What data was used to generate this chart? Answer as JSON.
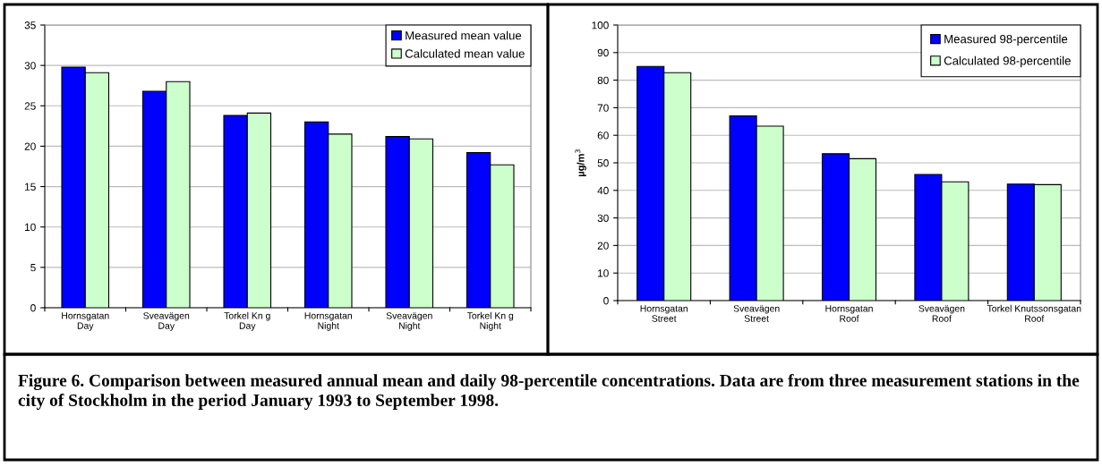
{
  "chart_data": [
    {
      "type": "bar",
      "categories": [
        "Hornsgatan\nDay",
        "Sveavägen\nDay",
        "Torkel Kn g\nDay",
        "Hornsgatan\nNight",
        "Sveavägen\nNight",
        "Torkel Kn g\nNight"
      ],
      "series": [
        {
          "name": "Measured mean value",
          "color": "#0000ff",
          "values": [
            29.8,
            26.8,
            23.8,
            23.0,
            21.2,
            19.2
          ]
        },
        {
          "name": "Calculated mean value",
          "color": "#ccffcc",
          "values": [
            29.1,
            28.0,
            24.1,
            21.5,
            20.9,
            17.7
          ]
        }
      ],
      "ylim": [
        0,
        35
      ],
      "yticks": [
        0,
        5,
        10,
        15,
        20,
        25,
        30,
        35
      ],
      "grid": "y",
      "legend": "top right",
      "annotations": [
        "Figure 6. Comparison between measured annual mean and daily 98-percentile concentrations. Data are from three measurement stations in the city of Stockholm in the period January 1993 to September 1998."
      ]
    },
    {
      "type": "bar",
      "categories": [
        "Hornsgatan\nStreet",
        "Sveavägen\nStreet",
        "Hornsgatan\nRoof",
        "Sveavägen\nRoof",
        "Torkel Knutssonsgatan\nRoof"
      ],
      "ylabel": "µg/m$^{3}$",
      "series": [
        {
          "name": "Measured 98-percentile",
          "color": "#0000ff",
          "values": [
            85,
            67,
            53.3,
            45.8,
            42.3
          ]
        },
        {
          "name": "Calculated 98-percentile",
          "color": "#ccffcc",
          "values": [
            82.7,
            63.3,
            51.5,
            43.1,
            42.1
          ]
        }
      ],
      "ylim": [
        0,
        100
      ],
      "yticks": [
        0,
        10,
        20,
        30,
        40,
        50,
        60,
        70,
        80,
        90,
        100
      ],
      "grid": "y",
      "legend": "top right"
    }
  ]
}
